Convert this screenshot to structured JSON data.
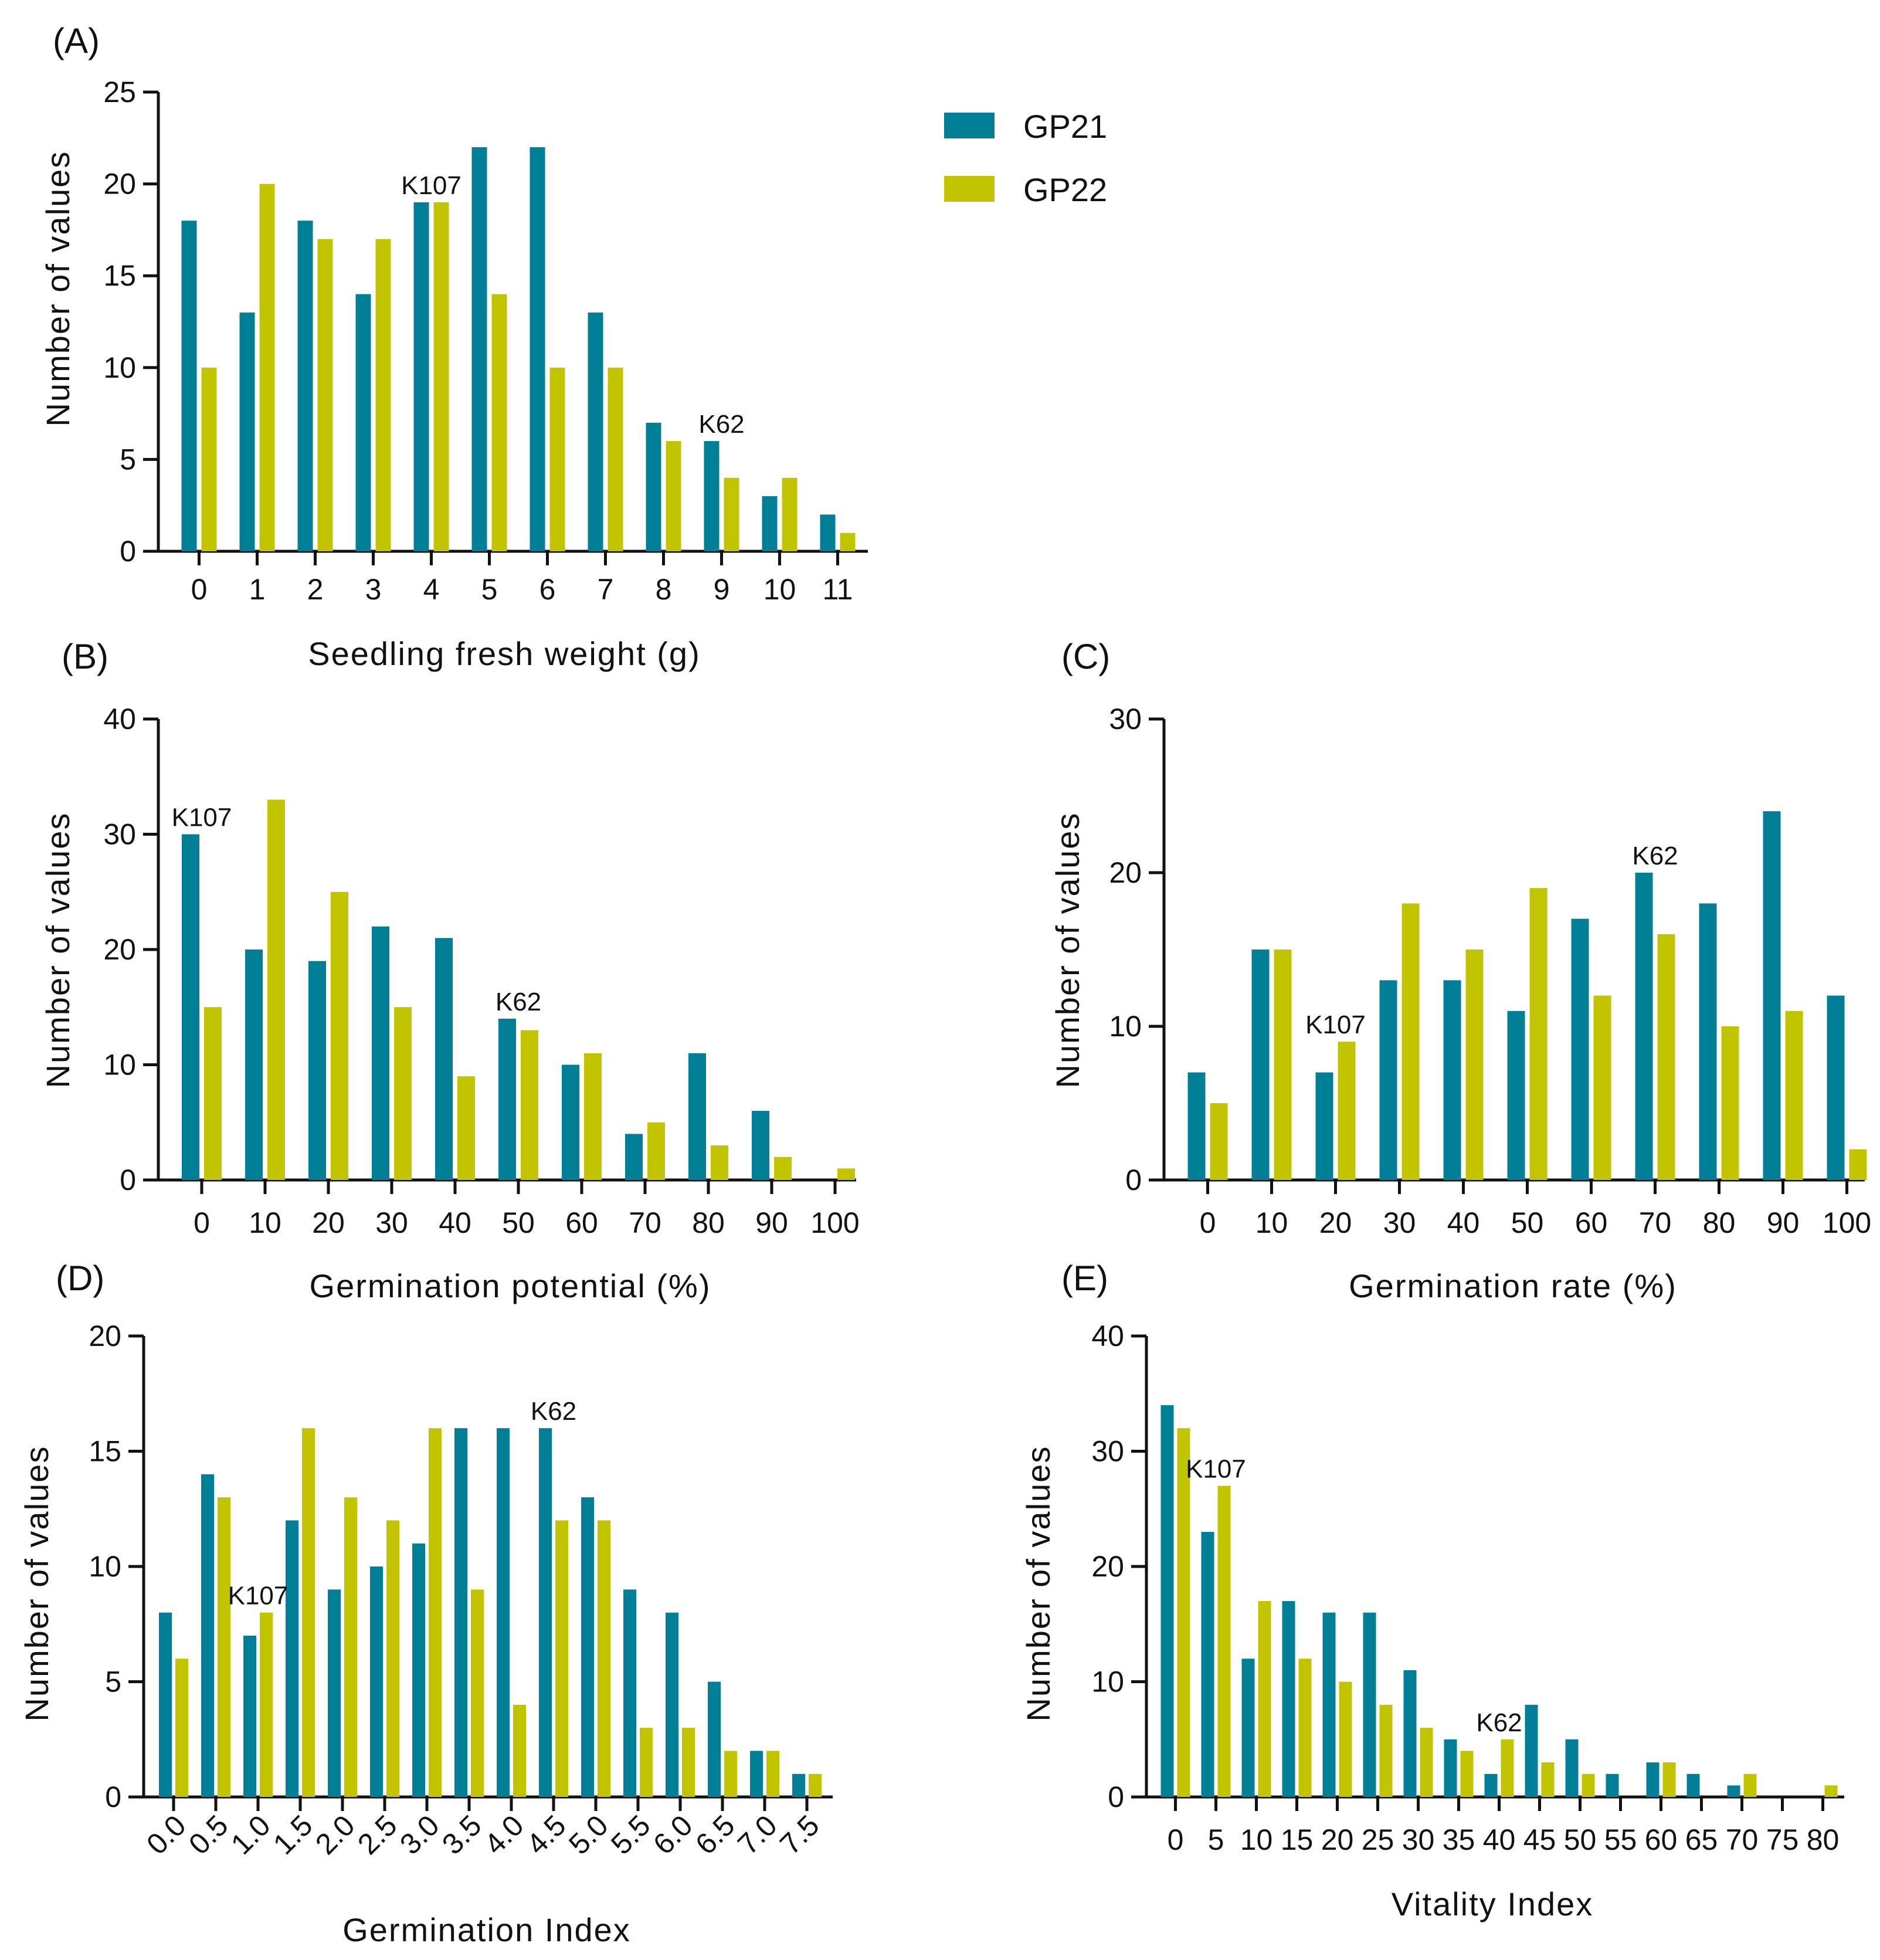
{
  "legend": {
    "entries": [
      {
        "name": "GP21",
        "color": "#007f97"
      },
      {
        "name": "GP22",
        "color": "#c3c400"
      }
    ]
  },
  "chart_data": [
    {
      "id": "A",
      "panel_label": "(A)",
      "type": "bar",
      "xlabel": "Seedling fresh weight (g)",
      "ylabel": "Number of values",
      "categories": [
        "0",
        "1",
        "2",
        "3",
        "4",
        "5",
        "6",
        "7",
        "8",
        "9",
        "10",
        "11"
      ],
      "ylim": [
        0,
        25
      ],
      "yticks": [
        0,
        5,
        10,
        15,
        20,
        25
      ],
      "series": [
        {
          "name": "GP21",
          "values": [
            18,
            13,
            18,
            14,
            19,
            22,
            22,
            13,
            7,
            6,
            3,
            2
          ]
        },
        {
          "name": "GP22",
          "values": [
            10,
            20,
            17,
            17,
            19,
            14,
            10,
            10,
            6,
            4,
            4,
            1
          ]
        }
      ],
      "annotations": [
        {
          "text": "K107",
          "category": "4"
        },
        {
          "text": "K62",
          "category": "9"
        }
      ]
    },
    {
      "id": "B",
      "panel_label": "(B)",
      "type": "bar",
      "xlabel": "Germination potential (%)",
      "ylabel": "Number of values",
      "categories": [
        "0",
        "10",
        "20",
        "30",
        "40",
        "50",
        "60",
        "70",
        "80",
        "90",
        "100"
      ],
      "ylim": [
        0,
        40
      ],
      "yticks": [
        0,
        10,
        20,
        30,
        40
      ],
      "series": [
        {
          "name": "GP21",
          "values": [
            30,
            20,
            19,
            22,
            21,
            14,
            10,
            4,
            11,
            6,
            0
          ]
        },
        {
          "name": "GP22",
          "values": [
            15,
            33,
            25,
            15,
            9,
            13,
            11,
            5,
            3,
            2,
            1
          ]
        }
      ],
      "annotations": [
        {
          "text": "K107",
          "category": "0"
        },
        {
          "text": "K62",
          "category": "50"
        }
      ]
    },
    {
      "id": "C",
      "panel_label": "(C)",
      "type": "bar",
      "xlabel": "Germination rate (%)",
      "ylabel": "Number of values",
      "categories": [
        "0",
        "10",
        "20",
        "30",
        "40",
        "50",
        "60",
        "70",
        "80",
        "90",
        "100"
      ],
      "ylim": [
        0,
        30
      ],
      "yticks": [
        0,
        10,
        20,
        30
      ],
      "series": [
        {
          "name": "GP21",
          "values": [
            7,
            15,
            7,
            13,
            13,
            11,
            17,
            20,
            18,
            24,
            12
          ]
        },
        {
          "name": "GP22",
          "values": [
            5,
            15,
            9,
            18,
            15,
            19,
            12,
            16,
            10,
            11,
            2
          ]
        }
      ],
      "annotations": [
        {
          "text": "K107",
          "category": "20"
        },
        {
          "text": "K62",
          "category": "70"
        }
      ]
    },
    {
      "id": "D",
      "panel_label": "(D)",
      "type": "bar",
      "xlabel": "Germination Index",
      "ylabel": "Number of values",
      "categories": [
        "0.0",
        "0.5",
        "1.0",
        "1.5",
        "2.0",
        "2.5",
        "3.0",
        "3.5",
        "4.0",
        "4.5",
        "5.0",
        "5.5",
        "6.0",
        "6.5",
        "7.0",
        "7.5"
      ],
      "ylim": [
        0,
        20
      ],
      "yticks": [
        0,
        5,
        10,
        15,
        20
      ],
      "rotated_ticks": true,
      "series": [
        {
          "name": "GP21",
          "values": [
            8,
            14,
            7,
            12,
            9,
            10,
            11,
            16,
            16,
            16,
            13,
            9,
            8,
            5,
            2,
            1
          ]
        },
        {
          "name": "GP22",
          "values": [
            6,
            13,
            8,
            16,
            13,
            12,
            16,
            9,
            4,
            12,
            12,
            3,
            3,
            2,
            2,
            1
          ]
        }
      ],
      "annotations": [
        {
          "text": "K107",
          "category": "1.0"
        },
        {
          "text": "K62",
          "category": "4.5"
        }
      ]
    },
    {
      "id": "E",
      "panel_label": "(E)",
      "type": "bar",
      "xlabel": "Vitality Index",
      "ylabel": "Number of values",
      "categories": [
        "0",
        "5",
        "10",
        "15",
        "20",
        "25",
        "30",
        "35",
        "40",
        "45",
        "50",
        "55",
        "60",
        "65",
        "70",
        "75",
        "80"
      ],
      "ylim": [
        0,
        40
      ],
      "yticks": [
        0,
        10,
        20,
        30,
        40
      ],
      "series": [
        {
          "name": "GP21",
          "values": [
            34,
            23,
            12,
            17,
            16,
            16,
            11,
            5,
            2,
            8,
            5,
            2,
            3,
            2,
            1,
            0,
            0
          ]
        },
        {
          "name": "GP22",
          "values": [
            32,
            27,
            17,
            12,
            10,
            8,
            6,
            4,
            5,
            3,
            2,
            0,
            3,
            0,
            2,
            0,
            1
          ]
        }
      ],
      "annotations": [
        {
          "text": "K107",
          "category": "5"
        },
        {
          "text": "K62",
          "category": "40"
        }
      ]
    }
  ]
}
